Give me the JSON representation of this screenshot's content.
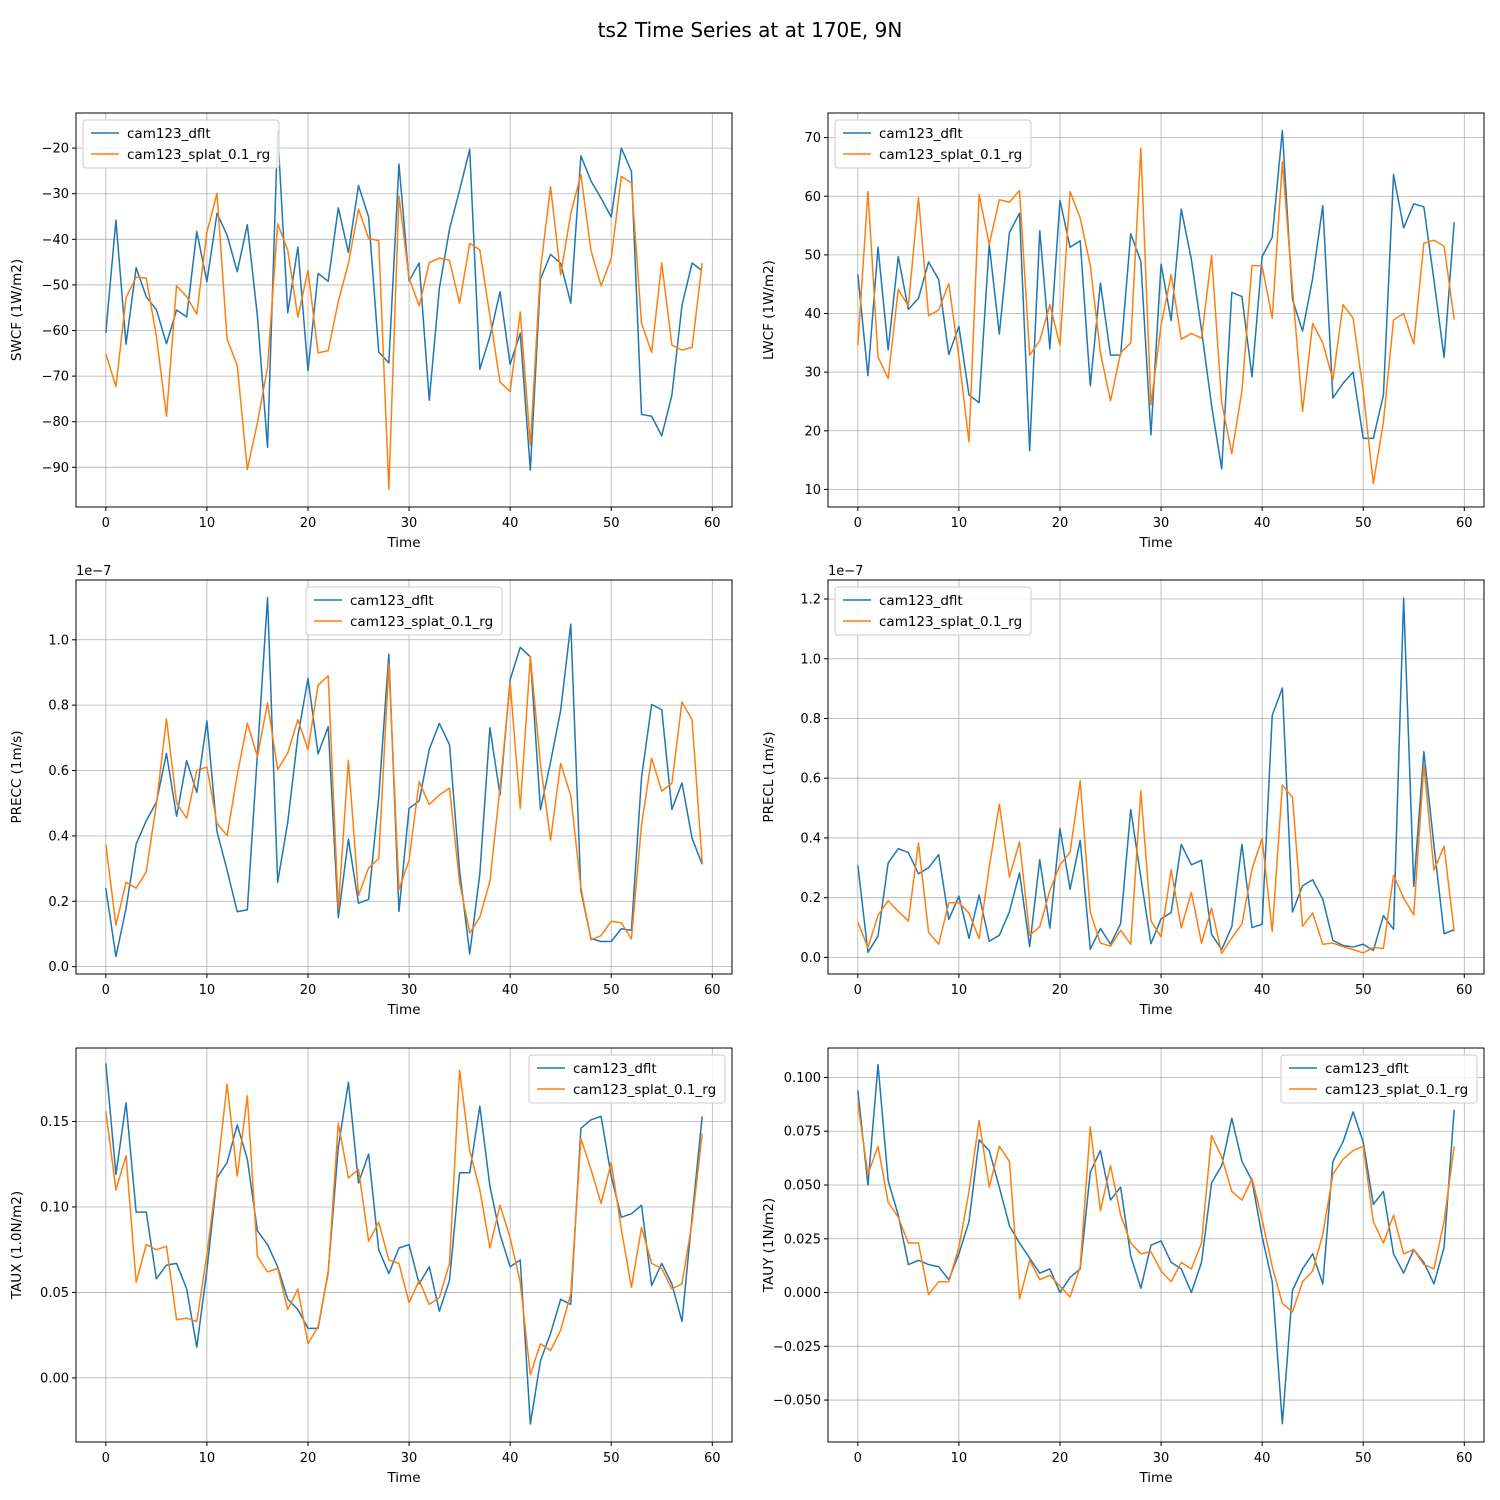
{
  "figure": {
    "title": "ts2 Time Series at at 170E, 9N"
  },
  "colors": {
    "series0": "#1f77b4",
    "series1": "#ff7f0e",
    "grid": "#b0b0b0",
    "frame": "#000000",
    "legend_border": "#cccccc"
  },
  "chart_data": [
    {
      "type": "line",
      "xlabel": "Time",
      "ylabel": "SWCF (1W/m2)",
      "xlim": [
        -2.95,
        61.95
      ],
      "ylim": [
        -98.7,
        -12.3
      ],
      "xticks": [
        0,
        10,
        20,
        30,
        40,
        50,
        60
      ],
      "xtick_labels": [
        "0",
        "10",
        "20",
        "30",
        "40",
        "50",
        "60"
      ],
      "yticks": [
        -90,
        -80,
        -70,
        -60,
        -50,
        -40,
        -30,
        -20
      ],
      "ytick_labels": [
        "−90",
        "−80",
        "−70",
        "−60",
        "−50",
        "−40",
        "−30",
        "−20"
      ],
      "offset_text": "",
      "grid": true,
      "legend_loc": "upper left",
      "series": [
        {
          "name": "cam123_dflt",
          "values": [
            -60.5,
            -35.8,
            -63,
            -46.2,
            -52.6,
            -55.4,
            -62.9,
            -55.5,
            -57,
            -38.3,
            -49.3,
            -34.3,
            -39.1,
            -47.1,
            -36.8,
            -56.9,
            -85.6,
            -16.3,
            -56.1,
            -41.7,
            -68.8,
            -47.5,
            -49.2,
            -33.1,
            -42.9,
            -28.2,
            -35.1,
            -64.7,
            -67.1,
            -23.5,
            -49.1,
            -45.2,
            -75.3,
            -50.7,
            -37.8,
            -29.2,
            -20.3,
            -68.5,
            -61.3,
            -51.5,
            -67.4,
            -60.6,
            -90.6,
            -48.7,
            -43.3,
            -45.3,
            -54,
            -21.7,
            -27.2,
            -31,
            -35.1,
            -20,
            -25.1,
            -78.4,
            -78.8,
            -83.1,
            -74.2,
            -54.5,
            -45.2,
            -46.9
          ]
        },
        {
          "name": "cam123_splat_0.1_rg",
          "values": [
            -65.1,
            -72.3,
            -52.8,
            -48.3,
            -48.5,
            -61.2,
            -78.8,
            -50.2,
            -52.6,
            -56.4,
            -38.5,
            -29.9,
            -61.9,
            -67.6,
            -90.5,
            -80.2,
            -68.1,
            -36.6,
            -42.4,
            -57.1,
            -46.8,
            -64.9,
            -64.4,
            -53.6,
            -45.3,
            -33.4,
            -39.8,
            -40.3,
            -94.8,
            -30.5,
            -48.5,
            -54.6,
            -45.1,
            -44.1,
            -44.6,
            -54,
            -40.9,
            -42.3,
            -56.8,
            -71.3,
            -73.4,
            -55.9,
            -85.1,
            -46.6,
            -28.5,
            -47.8,
            -34.3,
            -25.8,
            -42.5,
            -50.2,
            -44.2,
            -26.2,
            -27.6,
            -58.4,
            -64.8,
            -45.2,
            -63.2,
            -64.3,
            -63.7,
            -45.2
          ]
        }
      ]
    },
    {
      "type": "line",
      "xlabel": "Time",
      "ylabel": "LWCF (1W/m2)",
      "xlim": [
        -2.95,
        61.95
      ],
      "ylim": [
        7.0,
        74.2
      ],
      "xticks": [
        0,
        10,
        20,
        30,
        40,
        50,
        60
      ],
      "xtick_labels": [
        "0",
        "10",
        "20",
        "30",
        "40",
        "50",
        "60"
      ],
      "yticks": [
        10,
        20,
        30,
        40,
        50,
        60,
        70
      ],
      "ytick_labels": [
        "10",
        "20",
        "30",
        "40",
        "50",
        "60",
        "70"
      ],
      "offset_text": "",
      "grid": true,
      "legend_loc": "upper left",
      "series": [
        {
          "name": "cam123_dflt",
          "values": [
            46.7,
            29.4,
            51.3,
            33.8,
            49.7,
            40.7,
            42.6,
            48.8,
            45.8,
            33,
            37.8,
            26.1,
            24.8,
            51.8,
            36.5,
            53.8,
            57.1,
            16.6,
            54.1,
            34,
            59.3,
            51.3,
            52.4,
            27.7,
            45.2,
            32.9,
            32.9,
            53.6,
            48.9,
            19.3,
            48.4,
            38.8,
            57.8,
            49.2,
            37.2,
            24.3,
            13.5,
            43.6,
            42.9,
            29.2,
            49.7,
            53,
            71.2,
            42.4,
            37,
            46,
            58.4,
            25.6,
            28.1,
            30,
            18.7,
            18.7,
            26.1,
            63.7,
            54.6,
            58.7,
            58.2,
            45.7,
            32.5,
            55.6
          ]
        },
        {
          "name": "cam123_splat_0.1_rg",
          "values": [
            34.6,
            60.8,
            32.6,
            28.9,
            44.1,
            41.3,
            59.8,
            39.6,
            40.6,
            45.1,
            32.5,
            18.1,
            60.3,
            51.8,
            59.4,
            59,
            61,
            32.9,
            35.4,
            41.5,
            34.6,
            60.8,
            56.3,
            48.2,
            33.3,
            25.1,
            33.3,
            35,
            68.2,
            24.4,
            38,
            46.6,
            35.6,
            36.6,
            35.8,
            49.9,
            24.8,
            16.1,
            26.8,
            48.2,
            48.1,
            39.2,
            65.9,
            44.3,
            23.3,
            38.3,
            35,
            28.7,
            41.5,
            39.2,
            26.8,
            11,
            21.5,
            38.9,
            40,
            34.8,
            52,
            52.5,
            51.5,
            39
          ]
        }
      ]
    },
    {
      "type": "line",
      "xlabel": "Time",
      "ylabel": "PRECC (1m/s)",
      "xlim": [
        -2.95,
        61.95
      ],
      "ylim": [
        -0.0225,
        1.1829
      ],
      "xticks": [
        0,
        10,
        20,
        30,
        40,
        50,
        60
      ],
      "xtick_labels": [
        "0",
        "10",
        "20",
        "30",
        "40",
        "50",
        "60"
      ],
      "yticks": [
        0.0,
        0.2,
        0.4,
        0.6,
        0.8,
        1.0
      ],
      "ytick_labels": [
        "0.0",
        "0.2",
        "0.4",
        "0.6",
        "0.8",
        "1.0"
      ],
      "offset_text": "1e−7",
      "grid": true,
      "legend_loc": "upper center",
      "series": [
        {
          "name": "cam123_dflt",
          "values": [
            0.24,
            0.031,
            0.178,
            0.375,
            0.446,
            0.503,
            0.652,
            0.46,
            0.63,
            0.533,
            0.752,
            0.413,
            0.295,
            0.168,
            0.174,
            0.652,
            1.129,
            0.258,
            0.442,
            0.705,
            0.882,
            0.651,
            0.734,
            0.15,
            0.39,
            0.194,
            0.206,
            0.517,
            0.956,
            0.169,
            0.484,
            0.507,
            0.665,
            0.744,
            0.679,
            0.294,
            0.039,
            0.283,
            0.731,
            0.525,
            0.878,
            0.977,
            0.948,
            0.48,
            0.626,
            0.784,
            1.048,
            0.231,
            0.086,
            0.077,
            0.077,
            0.116,
            0.111,
            0.579,
            0.802,
            0.786,
            0.481,
            0.562,
            0.393,
            0.313
          ]
        },
        {
          "name": "cam123_splat_0.1_rg",
          "values": [
            0.374,
            0.127,
            0.258,
            0.24,
            0.29,
            0.497,
            0.758,
            0.5,
            0.454,
            0.6,
            0.611,
            0.438,
            0.401,
            0.586,
            0.745,
            0.643,
            0.807,
            0.603,
            0.654,
            0.756,
            0.664,
            0.861,
            0.89,
            0.177,
            0.631,
            0.218,
            0.302,
            0.331,
            0.926,
            0.236,
            0.325,
            0.566,
            0.496,
            0.525,
            0.546,
            0.258,
            0.103,
            0.151,
            0.261,
            0.547,
            0.869,
            0.484,
            0.949,
            0.619,
            0.387,
            0.622,
            0.523,
            0.242,
            0.082,
            0.095,
            0.139,
            0.134,
            0.085,
            0.434,
            0.638,
            0.537,
            0.561,
            0.81,
            0.755,
            0.318
          ]
        }
      ]
    },
    {
      "type": "line",
      "xlabel": "Time",
      "ylabel": "PRECL (1m/s)",
      "xlim": [
        -2.95,
        61.95
      ],
      "ylim": [
        -0.0556,
        1.2637
      ],
      "xticks": [
        0,
        10,
        20,
        30,
        40,
        50,
        60
      ],
      "xtick_labels": [
        "0",
        "10",
        "20",
        "30",
        "40",
        "50",
        "60"
      ],
      "yticks": [
        0.0,
        0.2,
        0.4,
        0.6,
        0.8,
        1.0,
        1.2
      ],
      "ytick_labels": [
        "0.0",
        "0.2",
        "0.4",
        "0.6",
        "0.8",
        "1.0",
        "1.2"
      ],
      "offset_text": "1e−7",
      "grid": true,
      "legend_loc": "upper left",
      "series": [
        {
          "name": "cam123_dflt",
          "values": [
            0.309,
            0.017,
            0.071,
            0.316,
            0.364,
            0.351,
            0.28,
            0.3,
            0.344,
            0.127,
            0.205,
            0.064,
            0.209,
            0.054,
            0.074,
            0.153,
            0.283,
            0.036,
            0.327,
            0.098,
            0.431,
            0.228,
            0.392,
            0.027,
            0.097,
            0.044,
            0.113,
            0.495,
            0.268,
            0.046,
            0.129,
            0.15,
            0.378,
            0.31,
            0.325,
            0.077,
            0.026,
            0.103,
            0.379,
            0.1,
            0.111,
            0.811,
            0.902,
            0.152,
            0.24,
            0.26,
            0.195,
            0.057,
            0.04,
            0.035,
            0.044,
            0.023,
            0.14,
            0.094,
            1.203,
            0.238,
            0.689,
            0.375,
            0.079,
            0.093
          ]
        },
        {
          "name": "cam123_splat_0.1_rg",
          "values": [
            0.118,
            0.033,
            0.141,
            0.19,
            0.154,
            0.122,
            0.383,
            0.084,
            0.044,
            0.183,
            0.184,
            0.148,
            0.063,
            0.302,
            0.513,
            0.269,
            0.387,
            0.074,
            0.103,
            0.224,
            0.31,
            0.352,
            0.591,
            0.151,
            0.048,
            0.038,
            0.091,
            0.044,
            0.557,
            0.122,
            0.069,
            0.294,
            0.099,
            0.218,
            0.048,
            0.165,
            0.013,
            0.065,
            0.112,
            0.296,
            0.398,
            0.087,
            0.577,
            0.536,
            0.104,
            0.149,
            0.044,
            0.048,
            0.036,
            0.026,
            0.015,
            0.033,
            0.03,
            0.275,
            0.199,
            0.142,
            0.644,
            0.292,
            0.372,
            0.086
          ]
        }
      ]
    },
    {
      "type": "line",
      "xlabel": "Time",
      "ylabel": "TAUX (1.0N/m2)",
      "xlim": [
        -2.95,
        61.95
      ],
      "ylim": [
        -0.0375,
        0.193
      ],
      "xticks": [
        0,
        10,
        20,
        30,
        40,
        50,
        60
      ],
      "xtick_labels": [
        "0",
        "10",
        "20",
        "30",
        "40",
        "50",
        "60"
      ],
      "yticks": [
        0.0,
        0.05,
        0.1,
        0.15
      ],
      "ytick_labels": [
        "0.00",
        "0.05",
        "0.10",
        "0.15"
      ],
      "offset_text": "",
      "grid": true,
      "legend_loc": "upper right",
      "series": [
        {
          "name": "cam123_dflt",
          "values": [
            0.184,
            0.119,
            0.161,
            0.097,
            0.097,
            0.058,
            0.066,
            0.067,
            0.052,
            0.018,
            0.063,
            0.117,
            0.126,
            0.148,
            0.128,
            0.086,
            0.078,
            0.065,
            0.046,
            0.04,
            0.029,
            0.029,
            0.062,
            0.135,
            0.173,
            0.114,
            0.131,
            0.075,
            0.061,
            0.076,
            0.078,
            0.055,
            0.065,
            0.039,
            0.057,
            0.12,
            0.12,
            0.159,
            0.112,
            0.084,
            0.065,
            0.069,
            -0.027,
            0.01,
            0.026,
            0.046,
            0.043,
            0.146,
            0.151,
            0.153,
            0.118,
            0.094,
            0.096,
            0.101,
            0.054,
            0.067,
            0.055,
            0.033,
            0.094,
            0.153
          ]
        },
        {
          "name": "cam123_splat_0.1_rg",
          "values": [
            0.156,
            0.11,
            0.13,
            0.056,
            0.078,
            0.075,
            0.077,
            0.034,
            0.035,
            0.033,
            0.072,
            0.119,
            0.172,
            0.118,
            0.165,
            0.071,
            0.062,
            0.064,
            0.04,
            0.052,
            0.02,
            0.03,
            0.061,
            0.149,
            0.117,
            0.122,
            0.08,
            0.091,
            0.069,
            0.067,
            0.044,
            0.057,
            0.043,
            0.047,
            0.067,
            0.18,
            0.133,
            0.11,
            0.076,
            0.101,
            0.082,
            0.056,
            0.002,
            0.02,
            0.016,
            0.028,
            0.049,
            0.14,
            0.122,
            0.102,
            0.126,
            0.087,
            0.053,
            0.088,
            0.067,
            0.064,
            0.052,
            0.055,
            0.091,
            0.143
          ]
        }
      ]
    },
    {
      "type": "line",
      "xlabel": "Time",
      "ylabel": "TAUY (1N/m2)",
      "xlim": [
        -2.95,
        61.95
      ],
      "ylim": [
        -0.0695,
        0.1137
      ],
      "xticks": [
        0,
        10,
        20,
        30,
        40,
        50,
        60
      ],
      "xtick_labels": [
        "0",
        "10",
        "20",
        "30",
        "40",
        "50",
        "60"
      ],
      "yticks": [
        -0.05,
        -0.025,
        0.0,
        0.025,
        0.05,
        0.075,
        0.1
      ],
      "ytick_labels": [
        "−0.050",
        "−0.025",
        "0.000",
        "0.025",
        "0.050",
        "0.075",
        "0.100"
      ],
      "offset_text": "",
      "grid": true,
      "legend_loc": "upper right",
      "series": [
        {
          "name": "cam123_dflt",
          "values": [
            0.094,
            0.05,
            0.106,
            0.052,
            0.036,
            0.013,
            0.015,
            0.013,
            0.012,
            0.006,
            0.018,
            0.033,
            0.071,
            0.066,
            0.049,
            0.031,
            0.023,
            0.016,
            0.009,
            0.011,
            0,
            0.007,
            0.011,
            0.056,
            0.066,
            0.043,
            0.049,
            0.017,
            0.002,
            0.022,
            0.024,
            0.014,
            0.011,
            0,
            0.014,
            0.051,
            0.059,
            0.081,
            0.061,
            0.052,
            0.026,
            0.005,
            -0.061,
            0.001,
            0.011,
            0.018,
            0.004,
            0.061,
            0.07,
            0.084,
            0.07,
            0.041,
            0.047,
            0.018,
            0.009,
            0.02,
            0.014,
            0.004,
            0.021,
            0.085
          ]
        },
        {
          "name": "cam123_splat_0.1_rg",
          "values": [
            0.088,
            0.055,
            0.068,
            0.042,
            0.035,
            0.023,
            0.023,
            -0.001,
            0.005,
            0.005,
            0.021,
            0.047,
            0.08,
            0.049,
            0.068,
            0.061,
            -0.003,
            0.015,
            0.006,
            0.008,
            0.003,
            -0.002,
            0.012,
            0.077,
            0.038,
            0.059,
            0.036,
            0.023,
            0.018,
            0.019,
            0.01,
            0.005,
            0.014,
            0.011,
            0.023,
            0.073,
            0.063,
            0.047,
            0.043,
            0.053,
            0.034,
            0.012,
            -0.005,
            -0.009,
            0.005,
            0.01,
            0.027,
            0.055,
            0.062,
            0.066,
            0.068,
            0.033,
            0.023,
            0.036,
            0.018,
            0.02,
            0.013,
            0.011,
            0.033,
            0.068
          ]
        }
      ]
    }
  ]
}
